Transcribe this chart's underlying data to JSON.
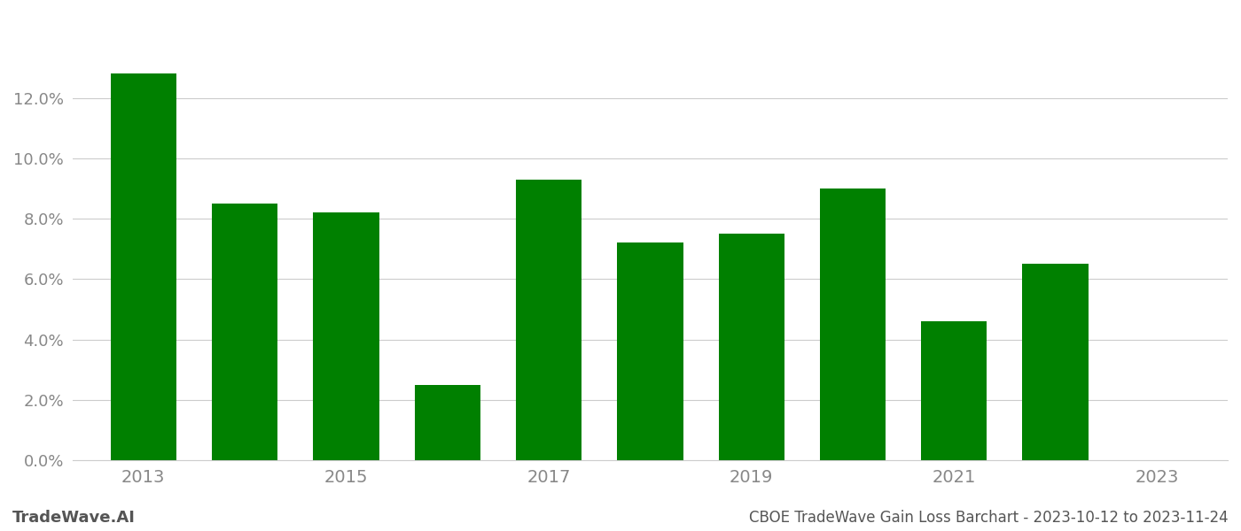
{
  "years": [
    2013,
    2014,
    2015,
    2016,
    2017,
    2018,
    2019,
    2020,
    2021,
    2022,
    2023
  ],
  "values": [
    0.128,
    0.085,
    0.082,
    0.025,
    0.093,
    0.072,
    0.075,
    0.09,
    0.046,
    0.065,
    null
  ],
  "bar_color": "#008000",
  "background_color": "#ffffff",
  "grid_color": "#cccccc",
  "title": "CBOE TradeWave Gain Loss Barchart - 2023-10-12 to 2023-11-24",
  "watermark": "TradeWave.AI",
  "ylim": [
    0,
    0.145
  ],
  "yticks": [
    0.0,
    0.02,
    0.04,
    0.06,
    0.08,
    0.1,
    0.12
  ],
  "xtick_labels": [
    2013,
    2015,
    2017,
    2019,
    2021,
    2023
  ],
  "text_color": "#888888",
  "title_color": "#555555",
  "watermark_color": "#555555"
}
